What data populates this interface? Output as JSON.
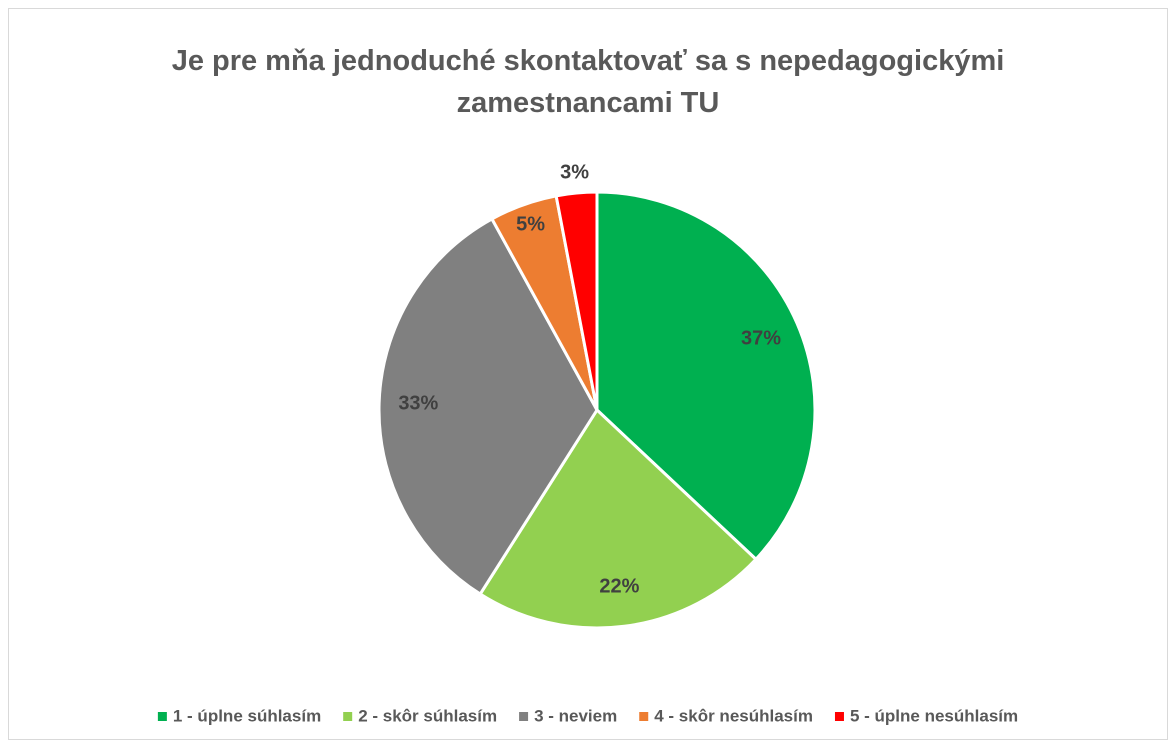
{
  "chart_data": {
    "type": "pie",
    "title": "Je pre mňa jednoduché skontaktovať sa s nepedagogickými zamestnancami TU",
    "categories": [
      "1 - úplne súhlasím",
      "2 - skôr súhlasím",
      "3 - neviem",
      "4 - skôr nesúhlasím",
      "5 - úplne nesúhlasím"
    ],
    "values": [
      37,
      22,
      33,
      5,
      3
    ],
    "value_labels": [
      "37%",
      "22%",
      "33%",
      "5%",
      "3%"
    ],
    "colors": [
      "#00b050",
      "#92d050",
      "#808080",
      "#ed7d31",
      "#ff0000"
    ],
    "legend": "bottom"
  }
}
